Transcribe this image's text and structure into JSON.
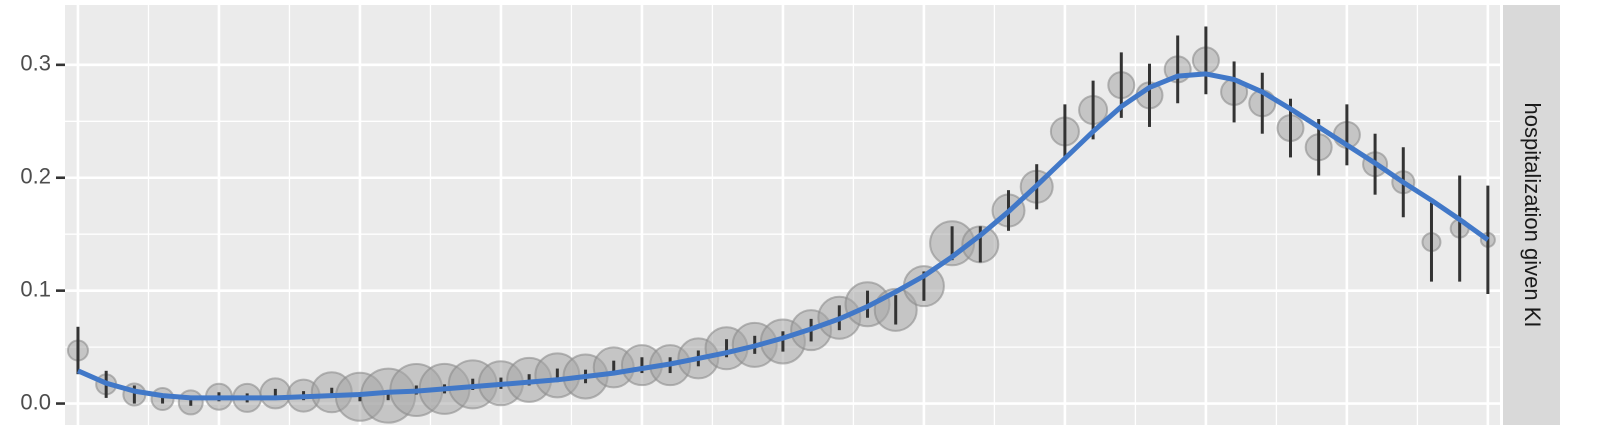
{
  "chart_data": {
    "type": "scatter",
    "facet_label": "hospitalization given KI",
    "x": [
      0,
      1,
      2,
      3,
      4,
      5,
      6,
      7,
      8,
      9,
      10,
      11,
      12,
      13,
      14,
      15,
      16,
      17,
      18,
      19,
      20,
      21,
      22,
      23,
      24,
      25,
      26,
      27,
      28,
      29,
      30,
      31,
      32,
      33,
      34,
      35,
      36,
      37,
      38,
      39,
      40,
      41,
      42,
      43,
      44,
      45,
      46,
      47,
      48,
      49,
      50
    ],
    "values": [
      0.047,
      0.017,
      0.008,
      0.004,
      0.001,
      0.006,
      0.005,
      0.009,
      0.007,
      0.01,
      0.006,
      0.007,
      0.012,
      0.013,
      0.017,
      0.018,
      0.021,
      0.025,
      0.024,
      0.032,
      0.034,
      0.034,
      0.04,
      0.049,
      0.052,
      0.055,
      0.065,
      0.076,
      0.088,
      0.083,
      0.104,
      0.142,
      0.141,
      0.171,
      0.192,
      0.241,
      0.26,
      0.282,
      0.273,
      0.296,
      0.304,
      0.276,
      0.266,
      0.244,
      0.227,
      0.238,
      0.212,
      0.196,
      0.143,
      0.155,
      0.145
    ],
    "errors": [
      0.021,
      0.012,
      0.008,
      0.004,
      0.003,
      0.004,
      0.004,
      0.004,
      0.004,
      0.004,
      0.004,
      0.004,
      0.004,
      0.004,
      0.005,
      0.005,
      0.005,
      0.006,
      0.006,
      0.006,
      0.007,
      0.007,
      0.007,
      0.008,
      0.008,
      0.009,
      0.01,
      0.011,
      0.012,
      0.013,
      0.013,
      0.015,
      0.016,
      0.018,
      0.02,
      0.024,
      0.026,
      0.029,
      0.028,
      0.03,
      0.03,
      0.027,
      0.027,
      0.026,
      0.025,
      0.027,
      0.027,
      0.031,
      0.035,
      0.047,
      0.048
    ],
    "sizes": [
      10,
      10,
      11,
      11,
      12,
      13,
      14,
      15,
      16,
      20,
      24,
      27,
      26,
      25,
      24,
      22,
      22,
      22,
      22,
      20,
      20,
      20,
      20,
      21,
      22,
      22,
      20,
      21,
      22,
      21,
      20,
      22,
      18,
      16,
      16,
      14,
      14,
      13,
      13,
      13,
      13,
      13,
      13,
      13,
      13,
      13,
      12,
      11,
      9,
      9,
      7
    ],
    "smooth": [
      0.029,
      0.018,
      0.011,
      0.007,
      0.005,
      0.005,
      0.005,
      0.005,
      0.006,
      0.007,
      0.008,
      0.01,
      0.011,
      0.013,
      0.015,
      0.017,
      0.019,
      0.021,
      0.024,
      0.027,
      0.031,
      0.035,
      0.04,
      0.045,
      0.051,
      0.058,
      0.066,
      0.075,
      0.086,
      0.099,
      0.113,
      0.13,
      0.149,
      0.17,
      0.193,
      0.217,
      0.241,
      0.263,
      0.28,
      0.29,
      0.292,
      0.287,
      0.276,
      0.261,
      0.245,
      0.229,
      0.213,
      0.196,
      0.18,
      0.163,
      0.145
    ],
    "point_color": "#a6a6a6",
    "errorbar_color": "#333333",
    "smooth_color": "#4178c8",
    "xlim": [
      -0.46,
      50.43
    ],
    "xticks": [
      0,
      5,
      10,
      15,
      20,
      25,
      30,
      35,
      40,
      45,
      50
    ],
    "ylim": [
      -0.019,
      0.353
    ],
    "yticks": [
      {
        "value": 0,
        "label": "0.0"
      },
      0.1,
      0.2,
      0.3
    ],
    "grid": true
  }
}
